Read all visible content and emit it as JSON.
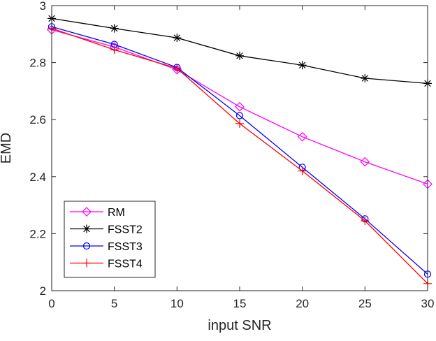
{
  "chart_data": {
    "type": "line",
    "title": "",
    "xlabel": "input SNR",
    "ylabel": "EMD",
    "xlim": [
      0,
      30
    ],
    "ylim": [
      2,
      3
    ],
    "x_ticks": [
      0,
      5,
      10,
      15,
      20,
      25,
      30
    ],
    "y_ticks": [
      2,
      2.2,
      2.4,
      2.6,
      2.8,
      3
    ],
    "y_tick_labels": [
      "2",
      "2.2",
      "2.4",
      "2.6",
      "2.8",
      "3"
    ],
    "grid": false,
    "legend_position": "bottom-left",
    "x": [
      0,
      5,
      10,
      15,
      20,
      25,
      30
    ],
    "series": [
      {
        "name": "RM",
        "color": "#ff00ff",
        "marker": "diamond",
        "values": [
          2.915,
          2.855,
          2.775,
          2.645,
          2.54,
          2.452,
          2.374
        ]
      },
      {
        "name": "FSST2",
        "color": "#000000",
        "marker": "asterisk",
        "values": [
          2.955,
          2.92,
          2.887,
          2.824,
          2.791,
          2.745,
          2.727
        ]
      },
      {
        "name": "FSST3",
        "color": "#0000ff",
        "marker": "circle",
        "values": [
          2.926,
          2.864,
          2.783,
          2.614,
          2.433,
          2.252,
          2.058
        ]
      },
      {
        "name": "FSST4",
        "color": "#ff0000",
        "marker": "plus",
        "values": [
          2.92,
          2.845,
          2.78,
          2.586,
          2.42,
          2.245,
          2.025
        ]
      }
    ]
  }
}
